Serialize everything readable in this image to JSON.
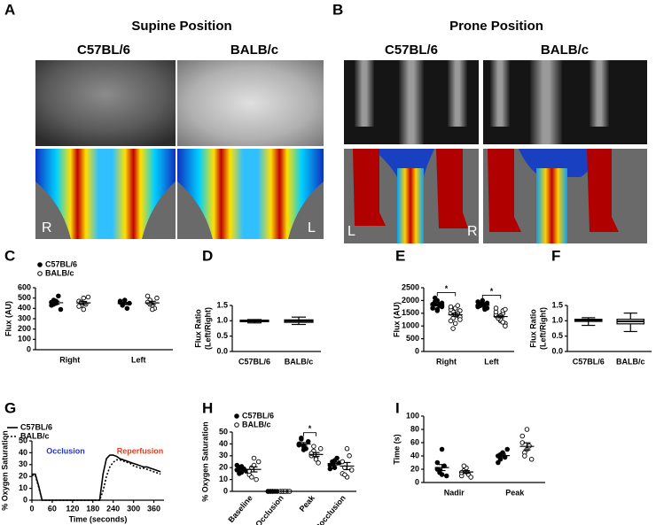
{
  "images": [
    {
      "label": "A",
      "title": "Supine Position",
      "columns": [
        "C57BL/6",
        "BALB/c"
      ],
      "corners": [
        "R",
        "L"
      ]
    },
    {
      "label": "B",
      "title": "Prone Position",
      "columns": [
        "C57BL/6",
        "BALB/c"
      ],
      "corners": [
        "L",
        "R"
      ]
    }
  ],
  "chart_data": [
    {
      "type": "dotplot",
      "label": "C",
      "ylabel": [
        "Flux (AU)"
      ],
      "legend": true,
      "categories": [
        "Right",
        "Left"
      ],
      "ylim": [
        0,
        600
      ],
      "yticks": [
        0,
        100,
        200,
        300,
        400,
        500,
        600
      ],
      "series": [
        {
          "name": "C57BL/6",
          "marker": "filled",
          "color": "#000000",
          "values": [
            [
              430,
              480,
              450,
              520,
              390,
              460,
              440,
              470
            ],
            [
              460,
              440,
              480,
              400,
              450,
              470,
              430
            ]
          ],
          "mean": [
            455,
            447
          ],
          "sem": [
            14,
            10
          ]
        },
        {
          "name": "BALB/c",
          "marker": "open",
          "color": "#000000",
          "values": [
            [
              470,
              430,
              500,
              440,
              510,
              420,
              460,
              390
            ],
            [
              520,
              480,
              430,
              400,
              500,
              460,
              440,
              390
            ]
          ],
          "mean": [
            453,
            453
          ],
          "sem": [
            14,
            16
          ]
        }
      ]
    },
    {
      "type": "box",
      "label": "D",
      "ylabel": [
        "Flux Ratio",
        "(Left/Right)"
      ],
      "categories": [
        "C57BL/6",
        "BALB/c"
      ],
      "ylim": [
        0,
        1.5
      ],
      "yticks": [
        {
          "value": 0,
          "label": "0.0"
        },
        0.5,
        {
          "value": 1,
          "label": "1.0"
        },
        1.5
      ],
      "boxes": [
        {
          "min": 0.93,
          "q1": 0.97,
          "median": 1.0,
          "q3": 1.02,
          "max": 1.04
        },
        {
          "min": 0.88,
          "q1": 0.95,
          "median": 1.0,
          "q3": 1.03,
          "max": 1.12
        }
      ]
    },
    {
      "type": "dotplot",
      "label": "E",
      "ylabel": [
        "Flux (AU)"
      ],
      "legend": false,
      "categories": [
        "Right",
        "Left"
      ],
      "ylim": [
        0,
        2500
      ],
      "yticks": [
        0,
        500,
        1000,
        1500,
        2000,
        2500
      ],
      "annotations": [
        "*",
        "*"
      ],
      "series": [
        {
          "name": "C57BL/6",
          "marker": "filled",
          "color": "#000000",
          "values": [
            [
              1700,
              1900,
              2000,
              1800,
              1750,
              1850,
              1950,
              1650,
              1800,
              1900,
              1700,
              2100,
              1600,
              1850
            ],
            [
              1800,
              1850,
              1900,
              1750,
              1700,
              1950,
              1800,
              1850,
              1650,
              1900,
              1750,
              1800,
              2000,
              1700
            ]
          ],
          "mean": [
            1818,
            1814
          ],
          "sem": [
            35,
            25
          ]
        },
        {
          "name": "BALB/c",
          "marker": "open",
          "color": "#000000",
          "values": [
            [
              1500,
              1300,
              1700,
              1400,
              1600,
              1200,
              1550,
              1450,
              1800,
              1350,
              1650,
              900,
              1100,
              1500,
              1250,
              1750
            ],
            [
              1400,
              1300,
              1200,
              1500,
              1100,
              1450,
              1350,
              1250,
              1600,
              1000,
              1550,
              1300,
              1400,
              1150,
              1650,
              1700
            ]
          ],
          "mean": [
            1441,
            1369
          ],
          "sem": [
            60,
            48
          ]
        }
      ]
    },
    {
      "type": "box",
      "label": "F",
      "ylabel": [
        "Flux Ratio",
        "(Left/Right)"
      ],
      "categories": [
        "C57BL/6",
        "BALB/c"
      ],
      "ylim": [
        0,
        1.5
      ],
      "yticks": [
        {
          "value": 0,
          "label": "0.0"
        },
        0.5,
        {
          "value": 1,
          "label": "1.0"
        },
        1.5
      ],
      "boxes": [
        {
          "min": 0.85,
          "q1": 0.98,
          "median": 1.02,
          "q3": 1.05,
          "max": 1.1
        },
        {
          "min": 0.65,
          "q1": 0.9,
          "median": 0.98,
          "q3": 1.05,
          "max": 1.25
        }
      ]
    },
    {
      "type": "line",
      "label": "G",
      "ylabel": [
        "% Oxygen Saturation"
      ],
      "xlabel": "Time (seconds)",
      "legend": true,
      "x": [
        0,
        10,
        20,
        30,
        40,
        50,
        60,
        70,
        80,
        90,
        100,
        110,
        120,
        130,
        140,
        150,
        160,
        170,
        180,
        190,
        200,
        210,
        220,
        230,
        240,
        250,
        260,
        270,
        280,
        290,
        300,
        310,
        320,
        330,
        340,
        350,
        360,
        370,
        380
      ],
      "xlim": [
        0,
        390
      ],
      "xticks": [
        0,
        60,
        120,
        180,
        240,
        300,
        360
      ],
      "ylim": [
        0,
        50
      ],
      "yticks": [
        0,
        10,
        20,
        30,
        40,
        50
      ],
      "annotations": [
        {
          "text": "Occlusion",
          "color": "#2233cc"
        },
        {
          "text": "Reperfusion",
          "color": "#e0401c"
        }
      ],
      "series": [
        {
          "name": "C57BL/6",
          "color": "#000000",
          "dashed": false,
          "values": [
            22,
            22,
            12,
            0,
            0,
            0,
            0,
            0,
            0,
            0,
            0,
            0,
            0,
            0,
            0,
            0,
            0,
            0,
            0,
            0,
            0,
            22,
            35,
            38,
            38,
            37,
            35,
            34,
            33,
            32,
            31,
            30,
            29,
            28,
            28,
            27,
            26,
            25,
            24
          ]
        },
        {
          "name": "BALB/c",
          "color": "#000000",
          "dashed": true,
          "values": [
            21,
            21,
            11,
            0,
            0,
            0,
            0,
            0,
            0,
            0,
            0,
            0,
            0,
            0,
            0,
            0,
            0,
            0,
            0,
            0,
            0,
            8,
            20,
            28,
            32,
            34,
            34,
            33,
            32,
            31,
            29,
            28,
            27,
            27,
            26,
            25,
            24,
            23,
            22
          ]
        }
      ]
    },
    {
      "type": "dotplot",
      "label": "H",
      "ylabel": [
        "% Oxygen Saturation"
      ],
      "legend": true,
      "rotate": true,
      "categories": [
        "Baseline",
        "Occlusion",
        "Peak",
        "Postocclusion"
      ],
      "ylim": [
        0,
        50
      ],
      "yticks": [
        0,
        10,
        20,
        30,
        40,
        50
      ],
      "annotations": [
        null,
        null,
        "*",
        null
      ],
      "series": [
        {
          "name": "C57BL/6",
          "marker": "filled",
          "color": "#000000",
          "values": [
            [
              18,
              20,
              16,
              19,
              17,
              22,
              15,
              21
            ],
            [
              0,
              0,
              0,
              0,
              0,
              0,
              0,
              0
            ],
            [
              40,
              44,
              38,
              36,
              42,
              39,
              45,
              35
            ],
            [
              22,
              25,
              20,
              28,
              24,
              19,
              23,
              26
            ]
          ],
          "mean": [
            18.5,
            0,
            39.9,
            23.4
          ],
          "sem": [
            0.8,
            0,
            1.2,
            1.1
          ]
        },
        {
          "name": "BALB/c",
          "marker": "open",
          "color": "#000000",
          "values": [
            [
              14,
              20,
              22,
              10,
              25,
              17,
              12,
              28
            ],
            [
              0,
              0,
              0,
              0,
              0,
              0,
              0,
              0
            ],
            [
              30,
              34,
              28,
              24,
              36,
              32,
              38,
              27
            ],
            [
              15,
              20,
              12,
              30,
              18,
              25,
              14,
              36
            ]
          ],
          "mean": [
            18.5,
            0,
            31.1,
            21.3
          ],
          "sem": [
            2.1,
            0,
            1.6,
            3.0
          ]
        }
      ]
    },
    {
      "type": "dotplot",
      "label": "I",
      "ylabel": [
        "Time (s)"
      ],
      "legend": false,
      "categories": [
        "Nadir",
        "Peak"
      ],
      "ylim": [
        0,
        100
      ],
      "yticks": [
        0,
        20,
        40,
        60,
        80,
        100
      ],
      "series": [
        {
          "name": "C57BL/6",
          "marker": "filled",
          "color": "#000000",
          "values": [
            [
              20,
              15,
              50,
              25,
              10,
              30,
              18,
              12
            ],
            [
              40,
              35,
              45,
              38,
              50,
              30,
              42,
              44
            ]
          ],
          "mean": [
            22.5,
            40.5
          ],
          "sem": [
            4.5,
            2.2
          ]
        },
        {
          "name": "BALB/c",
          "marker": "open",
          "color": "#000000",
          "values": [
            [
              10,
              18,
              22,
              12,
              8,
              15,
              25,
              16
            ],
            [
              60,
              45,
              80,
              55,
              35,
              70,
              40,
              50
            ]
          ],
          "mean": [
            15.8,
            54.4
          ],
          "sem": [
            2.0,
            5.3
          ]
        }
      ]
    }
  ]
}
